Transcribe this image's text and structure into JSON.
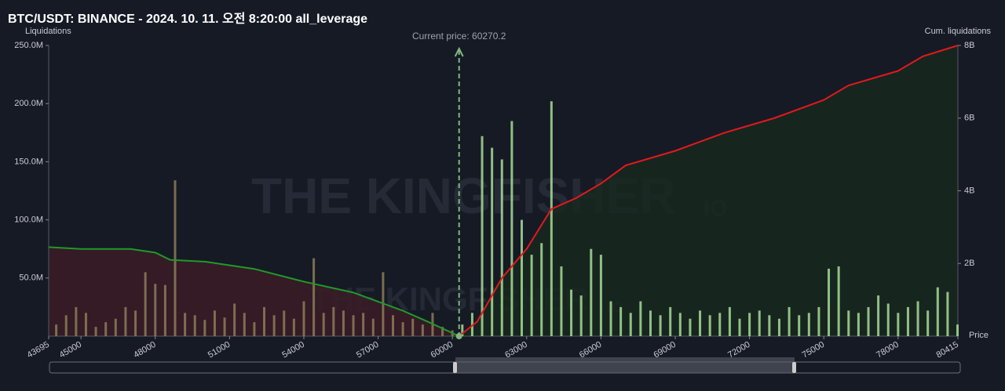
{
  "chart_data": {
    "type": "bar",
    "title": "BTC/USDT: BINANCE - 2024. 10. 11. 오전 8:20:00 all_leverage",
    "y_label": "Liquidations",
    "y2_label": "Cum. liquidations",
    "x_label": "Price",
    "watermark": "THE KINGFISHER",
    "watermark_suffix": "IO",
    "current_price": {
      "value": 60270.2,
      "label": "Current price: 60270.2"
    },
    "xlim": [
      43695,
      80415
    ],
    "xticks": [
      43695,
      45000,
      48000,
      51000,
      54000,
      57000,
      60000,
      63000,
      66000,
      69000,
      72000,
      75000,
      78000,
      80415
    ],
    "ylim": [
      0,
      250000000
    ],
    "yticks": [
      {
        "value": 50000000,
        "label": "50.0M"
      },
      {
        "value": 100000000,
        "label": "100.0M"
      },
      {
        "value": 150000000,
        "label": "150.0M"
      },
      {
        "value": 200000000,
        "label": "200.0M"
      },
      {
        "value": 250000000,
        "label": "250.0M"
      }
    ],
    "y2lim": [
      0,
      8000000000
    ],
    "y2ticks": [
      {
        "value": 2000000000,
        "label": "2B"
      },
      {
        "value": 4000000000,
        "label": "4B"
      },
      {
        "value": 6000000000,
        "label": "6B"
      },
      {
        "value": 8000000000,
        "label": "8B"
      }
    ],
    "series": [
      {
        "color": "#8c7b58",
        "x": [
          44000,
          44400,
          44800,
          45200,
          45600,
          46000,
          46400,
          46800,
          47200,
          47600,
          48000,
          48400,
          48800,
          49200,
          49600,
          50000,
          50400,
          50800,
          51200,
          51600,
          52000,
          52400,
          52800,
          53200,
          53600,
          54000,
          54400,
          54800,
          55200,
          55600,
          56000,
          56400,
          56800,
          57200,
          57600,
          58000,
          58400,
          58800,
          59200,
          59600,
          60000
        ],
        "values": [
          10000000,
          18000000,
          25000000,
          20000000,
          8000000,
          12000000,
          15000000,
          25000000,
          22000000,
          55000000,
          45000000,
          44000000,
          134000000,
          20000000,
          18000000,
          14000000,
          22000000,
          16000000,
          28000000,
          20000000,
          12000000,
          25000000,
          18000000,
          22000000,
          15000000,
          30000000,
          67000000,
          20000000,
          25000000,
          22000000,
          18000000,
          20000000,
          15000000,
          55000000,
          18000000,
          12000000,
          15000000,
          10000000,
          20000000,
          8000000,
          5000000
        ]
      },
      {
        "color": "#a8dc96",
        "x": [
          60400,
          60800,
          61200,
          61600,
          62000,
          62400,
          62800,
          63200,
          63600,
          64000,
          64400,
          64800,
          65200,
          65600,
          66000,
          66400,
          66800,
          67200,
          67600,
          68000,
          68400,
          68800,
          69200,
          69600,
          70000,
          70400,
          70800,
          71200,
          71600,
          72000,
          72400,
          72800,
          73200,
          73600,
          74000,
          74400,
          74800,
          75200,
          75600,
          76000,
          76400,
          76800,
          77200,
          77600,
          78000,
          78400,
          78800,
          79200,
          79600,
          80000,
          80400
        ],
        "values": [
          10000000,
          20000000,
          172000000,
          162000000,
          152000000,
          185000000,
          100000000,
          70000000,
          80000000,
          202000000,
          60000000,
          40000000,
          35000000,
          75000000,
          70000000,
          30000000,
          25000000,
          20000000,
          30000000,
          22000000,
          18000000,
          25000000,
          20000000,
          15000000,
          22000000,
          18000000,
          20000000,
          25000000,
          15000000,
          20000000,
          22000000,
          18000000,
          15000000,
          25000000,
          18000000,
          20000000,
          25000000,
          58000000,
          60000000,
          22000000,
          20000000,
          25000000,
          35000000,
          28000000,
          20000000,
          25000000,
          30000000,
          22000000,
          42000000,
          38000000,
          10000000
        ]
      }
    ],
    "cumulative": [
      {
        "color": "#1f9a2a",
        "fill": "#3a1c26",
        "axis": "y2",
        "x": [
          43695,
          45000,
          47000,
          48000,
          48600,
          50000,
          52000,
          54000,
          56000,
          58000,
          59000,
          60270.2
        ],
        "values": [
          2450000000,
          2400000000,
          2400000000,
          2300000000,
          2100000000,
          2050000000,
          1850000000,
          1500000000,
          1200000000,
          700000000,
          400000000,
          0
        ]
      },
      {
        "color": "#e3191c",
        "fill": "#17281f",
        "axis": "y2",
        "x": [
          60270.2,
          61000,
          62000,
          63000,
          64000,
          65000,
          66000,
          67000,
          69000,
          71000,
          73000,
          75000,
          76000,
          78000,
          79000,
          80415
        ],
        "values": [
          0,
          400000000,
          1600000000,
          2400000000,
          3500000000,
          3800000000,
          4200000000,
          4700000000,
          5100000000,
          5600000000,
          6000000000,
          6500000000,
          6900000000,
          7300000000,
          7700000000,
          8000000000
        ]
      }
    ]
  }
}
